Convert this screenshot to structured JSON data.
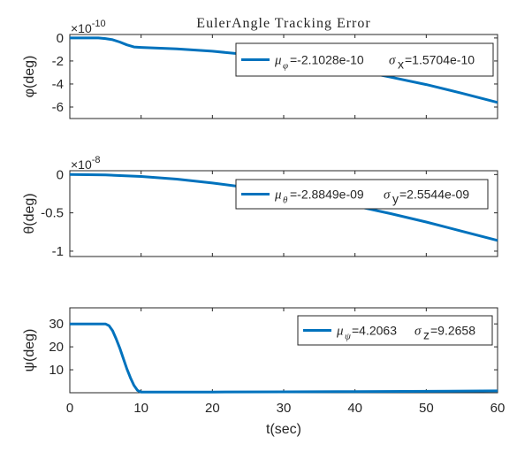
{
  "chart_data": [
    {
      "type": "line",
      "title": "EulerAngle Tracking Error",
      "ylabel": "φ(deg)",
      "xlim": [
        0,
        60
      ],
      "ylim": [
        -7,
        0.3
      ],
      "yticks": [
        0,
        -2,
        -4,
        -6
      ],
      "ytick_labels": [
        "0",
        "-2",
        "-4",
        "-6"
      ],
      "xticks": [
        0,
        10,
        20,
        30,
        40,
        50,
        60
      ],
      "exponent_base": "×10",
      "exponent_power": "-10",
      "scale": 1e-10,
      "legend_position": "top-right",
      "series": [
        {
          "color": "#0072BD",
          "x": [
            0,
            4,
            5,
            6,
            7,
            8,
            9,
            10,
            15,
            20,
            25,
            30,
            35,
            40,
            45,
            50,
            55,
            60
          ],
          "y": [
            0,
            0,
            -0.05,
            -0.15,
            -0.35,
            -0.6,
            -0.78,
            -0.82,
            -0.95,
            -1.15,
            -1.45,
            -1.85,
            -2.3,
            -2.8,
            -3.4,
            -4.05,
            -4.8,
            -5.6
          ]
        }
      ],
      "legend": {
        "mu_symbol": "μ",
        "mu_sub": "φ",
        "mu_value": "=-2.1028e-10",
        "sigma_symbol": "σ",
        "sigma_sub": "x",
        "sigma_value": "=1.5704e-10"
      }
    },
    {
      "type": "line",
      "ylabel": "θ(deg)",
      "xlim": [
        0,
        60
      ],
      "ylim": [
        -1.07,
        0.05
      ],
      "yticks": [
        0,
        -0.5,
        -1
      ],
      "ytick_labels": [
        "0",
        "-0.5",
        "-1"
      ],
      "xticks": [
        0,
        10,
        20,
        30,
        40,
        50,
        60
      ],
      "exponent_base": "×10",
      "exponent_power": "-8",
      "scale": 1e-08,
      "legend_position": "top-right",
      "series": [
        {
          "color": "#0072BD",
          "x": [
            0,
            5,
            10,
            15,
            20,
            25,
            30,
            35,
            40,
            45,
            50,
            55,
            60
          ],
          "y": [
            0,
            -0.005,
            -0.025,
            -0.06,
            -0.11,
            -0.17,
            -0.24,
            -0.32,
            -0.41,
            -0.51,
            -0.62,
            -0.74,
            -0.86
          ]
        }
      ],
      "legend": {
        "mu_symbol": "μ",
        "mu_sub": "θ",
        "mu_value": "=-2.8849e-09",
        "sigma_symbol": "σ",
        "sigma_sub": "y",
        "sigma_value": "=2.5544e-09"
      }
    },
    {
      "type": "line",
      "ylabel": "ψ(deg)",
      "xlabel": "t(sec)",
      "xlim": [
        0,
        60
      ],
      "ylim": [
        0,
        37
      ],
      "yticks": [
        10,
        20,
        30
      ],
      "ytick_labels": [
        "10",
        "20",
        "30"
      ],
      "xticks": [
        0,
        10,
        20,
        30,
        40,
        50,
        60
      ],
      "xtick_labels": [
        "0",
        "10",
        "20",
        "30",
        "40",
        "50",
        "60"
      ],
      "legend_position": "top-right",
      "series": [
        {
          "color": "#0072BD",
          "x": [
            0,
            5,
            5.5,
            6,
            6.5,
            7,
            7.5,
            8,
            8.5,
            9,
            9.5,
            10,
            15,
            20,
            30,
            40,
            50,
            60
          ],
          "y": [
            30,
            30,
            29.2,
            27,
            23.5,
            19.5,
            15,
            10.5,
            6.5,
            3.2,
            1,
            0.3,
            0.3,
            0.3,
            0.4,
            0.5,
            0.6,
            0.8
          ]
        }
      ],
      "legend": {
        "mu_symbol": "μ",
        "mu_sub": "ψ",
        "mu_value": "=4.2063",
        "sigma_symbol": "σ",
        "sigma_sub": "z",
        "sigma_value": "=9.2658"
      }
    }
  ]
}
